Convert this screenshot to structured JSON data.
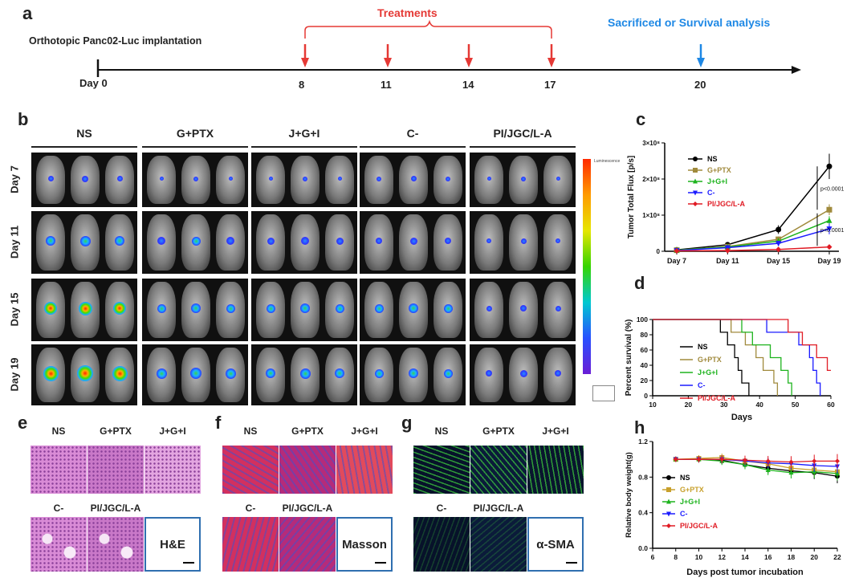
{
  "panels": {
    "a": "a",
    "b": "b",
    "c": "c",
    "d": "d",
    "e": "e",
    "f": "f",
    "g": "g",
    "h": "h"
  },
  "timeline": {
    "implantation": "Orthotopic Panc02-Luc implantation",
    "treatments": "Treatments",
    "endpoint": "Sacrificed or Survival analysis",
    "day_label": "Day",
    "day0": "0",
    "days": [
      "8",
      "11",
      "14",
      "17",
      "20"
    ],
    "colors": {
      "treatment": "#e53935",
      "endpoint": "#1e88e5"
    }
  },
  "imaging": {
    "groups": [
      "NS",
      "G+PTX",
      "J+G+I",
      "C-",
      "PI/JGC/L-A"
    ],
    "rows": [
      "Day 7",
      "Day 11",
      "Day 15",
      "Day 19"
    ],
    "colorbar_top": "Luminescence"
  },
  "histology": {
    "e": {
      "groups": [
        "NS",
        "G+PTX",
        "J+G+I",
        "C-",
        "PI/JGC/L-A"
      ],
      "stain": "H&E"
    },
    "f": {
      "groups": [
        "NS",
        "G+PTX",
        "J+G+I",
        "C-",
        "PI/JGC/L-A"
      ],
      "stain": "Masson"
    },
    "g": {
      "groups": [
        "NS",
        "G+PTX",
        "J+G+I",
        "C-",
        "PI/JGC/L-A"
      ],
      "stain": "α-SMA"
    }
  },
  "chart_data": [
    {
      "type": "line",
      "panel": "c",
      "ylabel": "Tumor Total Flux [p/s]",
      "categories": [
        "Day 7",
        "Day 11",
        "Day 15",
        "Day 19"
      ],
      "ytick_labels": [
        "0",
        "1×10⁸",
        "2×10⁸",
        "3×10⁸"
      ],
      "ylim": [
        0,
        3
      ],
      "y_unit_note": "×10^8 p/s",
      "series": [
        {
          "name": "NS",
          "color": "#000000",
          "marker": "circle",
          "values": [
            0.04,
            0.18,
            0.6,
            2.35
          ],
          "err": [
            0.02,
            0.05,
            0.12,
            0.35
          ]
        },
        {
          "name": "G+PTX",
          "color": "#a08a3c",
          "marker": "square",
          "values": [
            0.03,
            0.13,
            0.33,
            1.15
          ],
          "err": [
            0.02,
            0.04,
            0.08,
            0.15
          ]
        },
        {
          "name": "J+G+I",
          "color": "#1db31d",
          "marker": "triangle",
          "values": [
            0.03,
            0.12,
            0.28,
            0.85
          ],
          "err": [
            0.02,
            0.03,
            0.07,
            0.12
          ]
        },
        {
          "name": "C-",
          "color": "#1a1aff",
          "marker": "triangle-down",
          "values": [
            0.02,
            0.1,
            0.22,
            0.62
          ],
          "err": [
            0.01,
            0.03,
            0.06,
            0.15
          ]
        },
        {
          "name": "PI/JGC/L-A",
          "color": "#e01b24",
          "marker": "diamond",
          "values": [
            0.01,
            0.02,
            0.05,
            0.12
          ],
          "err": [
            0.01,
            0.01,
            0.02,
            0.03
          ]
        }
      ],
      "annotations": [
        "p<0.0001",
        "p<0.0001"
      ]
    },
    {
      "type": "line",
      "panel": "d",
      "xlabel": "Days",
      "ylabel": "Percent survival (%)",
      "xlim": [
        10,
        60
      ],
      "ylim": [
        0,
        100
      ],
      "xticks": [
        10,
        20,
        30,
        40,
        50,
        60
      ],
      "yticks": [
        0,
        20,
        40,
        60,
        80,
        100
      ],
      "series": [
        {
          "name": "NS",
          "color": "#000000",
          "steps": [
            [
              10,
              100
            ],
            [
              29,
              100
            ],
            [
              29,
              83.3
            ],
            [
              31,
              83.3
            ],
            [
              31,
              66.7
            ],
            [
              33,
              66.7
            ],
            [
              33,
              50
            ],
            [
              34,
              50
            ],
            [
              34,
              33.3
            ],
            [
              35,
              33.3
            ],
            [
              35,
              16.7
            ],
            [
              37,
              16.7
            ],
            [
              37,
              0
            ]
          ]
        },
        {
          "name": "G+PTX",
          "color": "#a08a3c",
          "steps": [
            [
              10,
              100
            ],
            [
              32,
              100
            ],
            [
              32,
              83.3
            ],
            [
              36,
              83.3
            ],
            [
              36,
              66.7
            ],
            [
              39,
              66.7
            ],
            [
              39,
              50
            ],
            [
              41,
              50
            ],
            [
              41,
              33.3
            ],
            [
              44,
              33.3
            ],
            [
              44,
              16.7
            ],
            [
              45,
              16.7
            ],
            [
              45,
              0
            ]
          ]
        },
        {
          "name": "J+G+I",
          "color": "#1db31d",
          "steps": [
            [
              10,
              100
            ],
            [
              35,
              100
            ],
            [
              35,
              83.3
            ],
            [
              38,
              83.3
            ],
            [
              38,
              66.7
            ],
            [
              43,
              66.7
            ],
            [
              43,
              50
            ],
            [
              46,
              50
            ],
            [
              46,
              33.3
            ],
            [
              48,
              33.3
            ],
            [
              48,
              16.7
            ],
            [
              49,
              16.7
            ],
            [
              49,
              0
            ]
          ]
        },
        {
          "name": "C-",
          "color": "#1a1aff",
          "steps": [
            [
              10,
              100
            ],
            [
              42,
              100
            ],
            [
              42,
              83.3
            ],
            [
              51,
              83.3
            ],
            [
              51,
              66.7
            ],
            [
              54,
              66.7
            ],
            [
              54,
              50
            ],
            [
              55,
              50
            ],
            [
              55,
              33.3
            ],
            [
              56,
              33.3
            ],
            [
              56,
              16.7
            ],
            [
              57,
              16.7
            ],
            [
              57,
              0
            ]
          ]
        },
        {
          "name": "PI/JGC/L-A",
          "color": "#e01b24",
          "steps": [
            [
              10,
              100
            ],
            [
              48,
              100
            ],
            [
              48,
              83.3
            ],
            [
              52,
              83.3
            ],
            [
              52,
              66.7
            ],
            [
              56,
              66.7
            ],
            [
              56,
              50
            ],
            [
              59,
              50
            ],
            [
              59,
              33.3
            ],
            [
              60,
              33.3
            ]
          ]
        }
      ]
    },
    {
      "type": "line",
      "panel": "h",
      "xlabel": "Days post tumor incubation",
      "ylabel": "Relative body weight(g)",
      "xlim": [
        6,
        22
      ],
      "ylim": [
        0,
        1.2
      ],
      "xticks": [
        6,
        8,
        10,
        12,
        14,
        16,
        18,
        20,
        22
      ],
      "yticks": [
        0.0,
        0.4,
        0.8,
        1.2
      ],
      "x": [
        8,
        10,
        12,
        14,
        16,
        18,
        20,
        22
      ],
      "series": [
        {
          "name": "NS",
          "color": "#000000",
          "values": [
            1.0,
            1.0,
            0.99,
            0.94,
            0.9,
            0.87,
            0.85,
            0.81
          ]
        },
        {
          "name": "G+PTX",
          "color": "#c8a02c",
          "values": [
            1.0,
            1.01,
            1.02,
            0.98,
            0.95,
            0.9,
            0.88,
            0.86
          ]
        },
        {
          "name": "J+G+I",
          "color": "#1db31d",
          "values": [
            1.0,
            1.0,
            0.98,
            0.94,
            0.88,
            0.85,
            0.86,
            0.84
          ]
        },
        {
          "name": "C-",
          "color": "#1a1aff",
          "values": [
            1.0,
            1.0,
            1.0,
            0.98,
            0.96,
            0.95,
            0.93,
            0.92
          ]
        },
        {
          "name": "PI/JGC/L-A",
          "color": "#e01b24",
          "values": [
            1.0,
            1.0,
            1.0,
            0.99,
            0.98,
            0.97,
            0.98,
            0.98
          ]
        }
      ]
    }
  ]
}
